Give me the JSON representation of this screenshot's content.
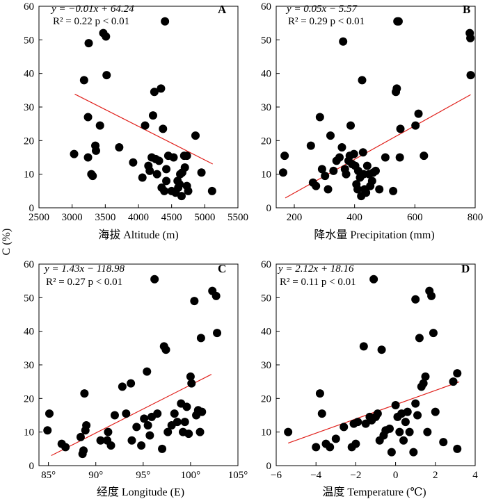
{
  "figure": {
    "ylabel": "C (%)"
  },
  "chart_data": [
    {
      "type": "scatter",
      "letter": "A",
      "equation": "y = −0.01x + 64.24",
      "r2_text": "R² = 0.22   p < 0.01",
      "xlabel": "海拔 Altitude (m)",
      "ylabel": "C (%)",
      "xlim": [
        2500,
        5500
      ],
      "ylim": [
        0,
        60
      ],
      "xticks": [
        2500,
        3000,
        3500,
        4000,
        4500,
        5000,
        5500
      ],
      "xtick_labels": [
        "2500",
        "3000",
        "3500",
        "4000",
        "4500",
        "5000",
        "5500"
      ],
      "yticks": [
        0,
        10,
        20,
        30,
        40,
        50,
        60
      ],
      "ytick_labels": [
        "0",
        "10",
        "20",
        "30",
        "40",
        "50",
        "60"
      ],
      "fit": {
        "slope": -0.01,
        "intercept": 64.24,
        "x_range": [
          3040,
          5120
        ]
      },
      "points": [
        [
          3030,
          16
        ],
        [
          3180,
          38
        ],
        [
          3240,
          27
        ],
        [
          3250,
          49
        ],
        [
          3240,
          15
        ],
        [
          3290,
          10
        ],
        [
          3310,
          9.5
        ],
        [
          3350,
          18.5
        ],
        [
          3360,
          17
        ],
        [
          3420,
          24.5
        ],
        [
          3470,
          52
        ],
        [
          3510,
          51
        ],
        [
          3520,
          39.5
        ],
        [
          3710,
          18
        ],
        [
          3920,
          13.5
        ],
        [
          4060,
          9
        ],
        [
          4100,
          24.5
        ],
        [
          4150,
          12.5
        ],
        [
          4170,
          11
        ],
        [
          4200,
          15
        ],
        [
          4220,
          27.5
        ],
        [
          4240,
          34.5
        ],
        [
          4260,
          14.5
        ],
        [
          4280,
          10
        ],
        [
          4310,
          14
        ],
        [
          4340,
          35.5
        ],
        [
          4370,
          23.5
        ],
        [
          4350,
          6
        ],
        [
          4390,
          5
        ],
        [
          4400,
          55.5
        ],
        [
          4420,
          8
        ],
        [
          4420,
          11.5
        ],
        [
          4450,
          15.5
        ],
        [
          4500,
          5
        ],
        [
          4530,
          15
        ],
        [
          4560,
          4.5
        ],
        [
          4590,
          8
        ],
        [
          4600,
          6
        ],
        [
          4620,
          7
        ],
        [
          4630,
          10
        ],
        [
          4650,
          3.5
        ],
        [
          4660,
          10.5
        ],
        [
          4690,
          15.5
        ],
        [
          4700,
          12
        ],
        [
          4730,
          15.5
        ],
        [
          4730,
          6.5
        ],
        [
          4750,
          5
        ],
        [
          4860,
          21.5
        ],
        [
          4950,
          10.5
        ],
        [
          5110,
          5
        ]
      ]
    },
    {
      "type": "scatter",
      "letter": "B",
      "equation": "y = 0.05x − 5.57",
      "r2_text": "R² = 0.29   p < 0.01",
      "xlabel": "降水量 Precipitation (mm)",
      "ylabel": "C (%)",
      "xlim": [
        140,
        800
      ],
      "ylim": [
        0,
        60
      ],
      "xticks": [
        200,
        400,
        600,
        800
      ],
      "xtick_labels": [
        "200",
        "400",
        "600",
        "800"
      ],
      "yticks": [
        0,
        10,
        20,
        30,
        40,
        50,
        60
      ],
      "ytick_labels": [
        "0",
        "10",
        "20",
        "30",
        "40",
        "50",
        "60"
      ],
      "fit": {
        "slope": 0.05,
        "intercept": -5.57,
        "x_range": [
          170,
          785
        ]
      },
      "points": [
        [
          163,
          10.5
        ],
        [
          168,
          15.5
        ],
        [
          255,
          18.5
        ],
        [
          262,
          7.5
        ],
        [
          272,
          6.5
        ],
        [
          285,
          27
        ],
        [
          292,
          11.5
        ],
        [
          302,
          9.5
        ],
        [
          312,
          5.5
        ],
        [
          320,
          21.5
        ],
        [
          330,
          11
        ],
        [
          340,
          14
        ],
        [
          350,
          15
        ],
        [
          358,
          18
        ],
        [
          362,
          49.5
        ],
        [
          368,
          11.5
        ],
        [
          372,
          10
        ],
        [
          380,
          14
        ],
        [
          384,
          15.5
        ],
        [
          387,
          24.5
        ],
        [
          392,
          13
        ],
        [
          398,
          16
        ],
        [
          402,
          12.5
        ],
        [
          406,
          7
        ],
        [
          410,
          5.5
        ],
        [
          412,
          11
        ],
        [
          418,
          9
        ],
        [
          422,
          3.5
        ],
        [
          425,
          38
        ],
        [
          428,
          16.5
        ],
        [
          430,
          10
        ],
        [
          433,
          5.5
        ],
        [
          438,
          4.5
        ],
        [
          442,
          12.5
        ],
        [
          448,
          10
        ],
        [
          452,
          6.5
        ],
        [
          458,
          8
        ],
        [
          462,
          10.5
        ],
        [
          470,
          11
        ],
        [
          482,
          5.5
        ],
        [
          502,
          15
        ],
        [
          528,
          5
        ],
        [
          537,
          34.5
        ],
        [
          540,
          35.5
        ],
        [
          542,
          55.5
        ],
        [
          546,
          55.5
        ],
        [
          550,
          15
        ],
        [
          552,
          23.5
        ],
        [
          602,
          24.5
        ],
        [
          612,
          28
        ],
        [
          630,
          15.5
        ],
        [
          782,
          52
        ],
        [
          784,
          50.5
        ],
        [
          785,
          39.5
        ]
      ]
    },
    {
      "type": "scatter",
      "letter": "C",
      "equation": "y = 1.43x − 118.98",
      "r2_text": "R² = 0.27   p < 0.01",
      "xlabel": "经度 Longitude (E)",
      "ylabel": "C (%)",
      "xlim": [
        84,
        105
      ],
      "ylim": [
        0,
        60
      ],
      "xticks": [
        85,
        90,
        95,
        100,
        105
      ],
      "xtick_labels": [
        "85°",
        "90°",
        "95°",
        "100°",
        "105°"
      ],
      "yticks": [
        0,
        10,
        20,
        30,
        40,
        50,
        60
      ],
      "ytick_labels": [
        "0",
        "10",
        "20",
        "30",
        "40",
        "50",
        "60"
      ],
      "fit": {
        "slope": 1.43,
        "intercept": -118.98,
        "x_range": [
          85.3,
          102.2
        ]
      },
      "points": [
        [
          84.9,
          10.5
        ],
        [
          85.1,
          15.5
        ],
        [
          86.4,
          6.5
        ],
        [
          86.8,
          5.5
        ],
        [
          88.4,
          8.5
        ],
        [
          88.6,
          3.5
        ],
        [
          88.7,
          4.5
        ],
        [
          88.8,
          21.5
        ],
        [
          88.9,
          10.5
        ],
        [
          89.0,
          12
        ],
        [
          90.5,
          7.5
        ],
        [
          91.2,
          7.5
        ],
        [
          91.3,
          10
        ],
        [
          91.6,
          6
        ],
        [
          92.0,
          15
        ],
        [
          92.8,
          23.5
        ],
        [
          93.2,
          15.5
        ],
        [
          93.7,
          24.5
        ],
        [
          93.8,
          7.5
        ],
        [
          94.3,
          11.5
        ],
        [
          94.8,
          6
        ],
        [
          95.1,
          14
        ],
        [
          95.4,
          28
        ],
        [
          95.5,
          12
        ],
        [
          95.7,
          9
        ],
        [
          95.9,
          14.5
        ],
        [
          96.2,
          55.5
        ],
        [
          96.5,
          15.5
        ],
        [
          97.0,
          5
        ],
        [
          97.2,
          35.5
        ],
        [
          97.4,
          34.5
        ],
        [
          97.6,
          10
        ],
        [
          98.0,
          12
        ],
        [
          98.3,
          15.5
        ],
        [
          98.6,
          13
        ],
        [
          99.0,
          18.5
        ],
        [
          99.2,
          10
        ],
        [
          99.4,
          13
        ],
        [
          99.6,
          17.5
        ],
        [
          99.8,
          9.5
        ],
        [
          100.0,
          26.5
        ],
        [
          100.1,
          24.5
        ],
        [
          100.4,
          49
        ],
        [
          100.6,
          15
        ],
        [
          100.8,
          16.5
        ],
        [
          101.0,
          10
        ],
        [
          101.1,
          38
        ],
        [
          101.2,
          16
        ],
        [
          102.3,
          52
        ],
        [
          102.7,
          50.5
        ],
        [
          102.8,
          39.5
        ]
      ]
    },
    {
      "type": "scatter",
      "letter": "D",
      "equation": "y = 2.12x + 18.16",
      "r2_text": "R² = 0.11   p < 0.01",
      "xlabel": "温度 Temperature (℃)",
      "ylabel": "C (%)",
      "xlim": [
        -6,
        4
      ],
      "ylim": [
        0,
        60
      ],
      "xticks": [
        -6,
        -4,
        -2,
        0,
        2,
        4
      ],
      "xtick_labels": [
        "−6",
        "−4",
        "−2",
        "0",
        "2",
        "4"
      ],
      "yticks": [
        0,
        10,
        20,
        30,
        40,
        50,
        60
      ],
      "ytick_labels": [
        "0",
        "10",
        "20",
        "30",
        "40",
        "50",
        "60"
      ],
      "fit": {
        "slope": 2.12,
        "intercept": 18.16,
        "x_range": [
          -5.4,
          3.2
        ]
      },
      "points": [
        [
          -5.4,
          10
        ],
        [
          -4.0,
          5.5
        ],
        [
          -3.8,
          21.5
        ],
        [
          -3.7,
          15.5
        ],
        [
          -3.5,
          6.5
        ],
        [
          -3.3,
          5.5
        ],
        [
          -3.0,
          8
        ],
        [
          -2.6,
          11.5
        ],
        [
          -2.2,
          5.5
        ],
        [
          -2.1,
          12.5
        ],
        [
          -2.0,
          6.5
        ],
        [
          -1.9,
          13
        ],
        [
          -1.6,
          35.5
        ],
        [
          -1.5,
          12.5
        ],
        [
          -1.3,
          14.5
        ],
        [
          -1.2,
          13.5
        ],
        [
          -1.1,
          55.5
        ],
        [
          -1.0,
          14.5
        ],
        [
          -0.9,
          15.5
        ],
        [
          -0.8,
          7.5
        ],
        [
          -0.7,
          34.5
        ],
        [
          -0.6,
          9
        ],
        [
          -0.5,
          10.5
        ],
        [
          -0.3,
          11
        ],
        [
          -0.2,
          4
        ],
        [
          0.0,
          18
        ],
        [
          0.1,
          14.5
        ],
        [
          0.2,
          10
        ],
        [
          0.3,
          15.5
        ],
        [
          0.4,
          7.5
        ],
        [
          0.5,
          13
        ],
        [
          0.6,
          16
        ],
        [
          0.7,
          10
        ],
        [
          0.9,
          4
        ],
        [
          1.0,
          49.5
        ],
        [
          1.0,
          18.5
        ],
        [
          1.1,
          15
        ],
        [
          1.2,
          38
        ],
        [
          1.3,
          23.5
        ],
        [
          1.4,
          24.5
        ],
        [
          1.5,
          26.5
        ],
        [
          1.6,
          10
        ],
        [
          1.7,
          52
        ],
        [
          1.8,
          50.5
        ],
        [
          1.9,
          39.5
        ],
        [
          2.0,
          16
        ],
        [
          2.4,
          7
        ],
        [
          2.9,
          25
        ],
        [
          3.1,
          27.5
        ],
        [
          3.1,
          5
        ]
      ]
    }
  ]
}
